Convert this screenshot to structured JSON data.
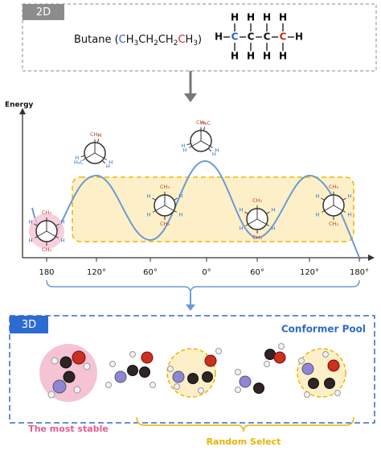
{
  "panel_2d": {
    "tag": "2D",
    "name_parts": [
      "Butane (",
      "C",
      "H",
      "3",
      "CH",
      "2",
      "CH",
      "2",
      "C",
      "H",
      "3",
      ")"
    ],
    "structure": {
      "top": [
        "H",
        "H",
        "H",
        "H"
      ],
      "middle": [
        "H",
        "C",
        "C",
        "C",
        "C",
        "H"
      ],
      "bottom": [
        "H",
        "H",
        "H",
        "H"
      ]
    }
  },
  "energy_diagram": {
    "y_label": "Energy",
    "x_tick_labels": [
      "180",
      "120°",
      "60°",
      "0°",
      "60°",
      "120°",
      "180°"
    ],
    "newman": [
      {
        "labels": [
          "CH₃",
          "H",
          "H",
          "CH₃",
          "H",
          "H"
        ]
      },
      {
        "labels": [
          "CH₃",
          "H",
          "H₃C",
          "H",
          "H",
          "H"
        ]
      },
      {
        "labels": [
          "CH₃",
          "H",
          "H",
          "CH₃",
          "H",
          "H"
        ]
      },
      {
        "labels": [
          "CH₃",
          "H",
          "H",
          "H₃C",
          "H",
          "H"
        ]
      },
      {
        "labels": [
          "CH₃",
          "H",
          "H",
          "CH₃",
          "H",
          "H"
        ]
      },
      {
        "labels": [
          "CH₃",
          "H",
          "H",
          "CH₃",
          "H",
          "H"
        ]
      }
    ]
  },
  "panel_3d": {
    "tag": "3D",
    "title": "Conformer Pool",
    "most_stable_label": "The most stable",
    "random_select_label": "Random Select"
  }
}
